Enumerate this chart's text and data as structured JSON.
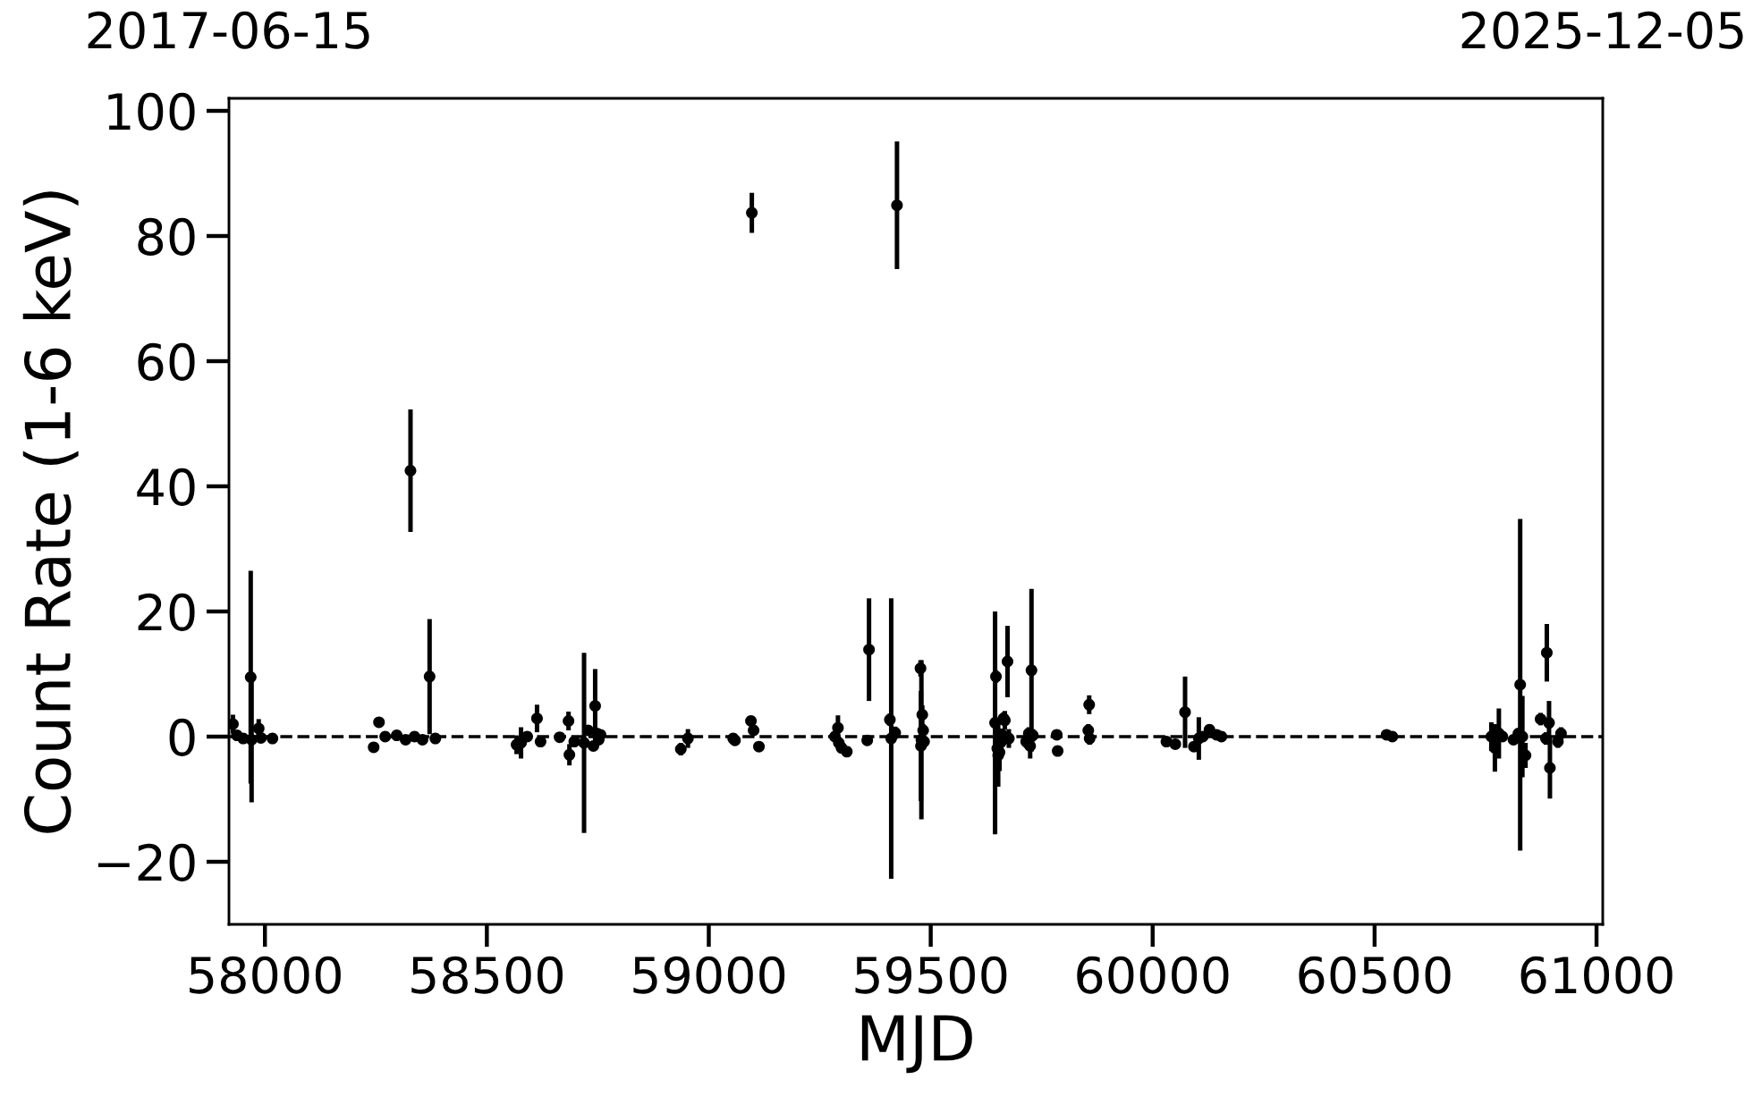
{
  "chart_data": {
    "type": "scatter",
    "xlabel": "MJD",
    "ylabel": "Count Rate (1-6 keV)",
    "color": "#000000",
    "marker": "circle",
    "xlim": [
      57919,
      61014
    ],
    "xticks": [
      58000,
      58500,
      59000,
      59500,
      60000,
      60500,
      61000
    ],
    "ylim": [
      -30,
      102
    ],
    "yticks": [
      {
        "value": -20,
        "label": "−20"
      },
      0,
      20,
      40,
      60,
      80,
      100
    ],
    "x2lim": [
      "2017-06-15",
      "2025-12-05"
    ],
    "x2ticks": [
      "2017-06-15",
      "2025-12-05"
    ],
    "ref_lines": [
      {
        "axis": "y",
        "value": 0,
        "color": "#000000",
        "line_style": "dashed"
      }
    ],
    "x": [
      57928,
      57937,
      57951,
      57968,
      57970,
      57986,
      57991,
      58017,
      58245,
      58257,
      58271,
      58297,
      58317,
      58328,
      58337,
      58355,
      58371,
      58384,
      58567,
      58577,
      58591,
      58613,
      58621,
      58664,
      58684,
      58686,
      58697,
      58719,
      58728,
      58740,
      58744,
      58748,
      58752,
      58756,
      58937,
      58953,
      59055,
      59059,
      59095,
      59097,
      59101,
      59113,
      59284,
      59291,
      59293,
      59299,
      59311,
      59357,
      59361,
      59408,
      59411,
      59420,
      59424,
      59477,
      59478,
      59479,
      59481,
      59483,
      59485,
      59645,
      59647,
      59650,
      59652,
      59655,
      59658,
      59661,
      59664,
      59667,
      59673,
      59676,
      59715,
      59721,
      59724,
      59727,
      59730,
      59784,
      59786,
      59855,
      59857,
      59858,
      60031,
      60051,
      60073,
      60093,
      60104,
      60113,
      60128,
      60144,
      60155,
      60527,
      60540,
      60763,
      60771,
      60780,
      60788,
      60813,
      60824,
      60828,
      60833,
      60840,
      60874,
      60886,
      60888,
      60893,
      60895,
      60913,
      60920
    ],
    "values": [
      2.0,
      0.2,
      -0.3,
      9.5,
      -0.5,
      1.3,
      -0.2,
      -0.3,
      -1.7,
      2.3,
      0,
      0.2,
      -0.5,
      42.5,
      0,
      -0.5,
      9.6,
      -0.3,
      -1.3,
      -1.0,
      0,
      2.9,
      -0.8,
      -0.1,
      2.5,
      -2.9,
      -0.8,
      -1.0,
      1.0,
      -1.5,
      4.9,
      0.5,
      -0.5,
      0.3,
      -2.0,
      -0.3,
      -0.3,
      -0.6,
      2.5,
      83.7,
      1.0,
      -1.6,
      0,
      1.4,
      -1.0,
      -1.8,
      -2.4,
      -0.6,
      13.9,
      2.7,
      -0.3,
      0.6,
      84.9,
      10.9,
      -1.5,
      -0.5,
      3.5,
      1.0,
      -0.8,
      2.2,
      9.6,
      -1.9,
      -3.0,
      -2.5,
      -0.9,
      0.3,
      2.9,
      2.6,
      12.0,
      -0.3,
      -0.8,
      0.5,
      -1.5,
      10.6,
      0.2,
      0.3,
      -2.3,
      1.0,
      5.1,
      -0.3,
      -0.8,
      -1.2,
      3.9,
      -1.6,
      -0.3,
      0,
      1.1,
      0.3,
      0,
      0.3,
      0,
      0,
      -1.8,
      0.5,
      0,
      -0.5,
      0.5,
      8.3,
      0,
      -3.0,
      2.8,
      -0.3,
      13.4,
      2.2,
      -5.0,
      -0.8,
      0.5
    ],
    "errors": [
      1.5,
      0.5,
      0.5,
      17,
      10,
      1.5,
      0.8,
      0.5,
      0.5,
      0.5,
      0.5,
      0.5,
      0.5,
      9.8,
      0.5,
      0.5,
      9.2,
      0.5,
      1.5,
      2.5,
      0.8,
      2.2,
      0.8,
      0.5,
      1.5,
      1.7,
      0.8,
      14.4,
      0.8,
      0.8,
      5.9,
      0.8,
      0.8,
      0.8,
      1,
      1.5,
      0.5,
      0.5,
      0.8,
      3.2,
      0.8,
      0.8,
      0.8,
      2,
      1,
      0.8,
      0.8,
      0.5,
      8.2,
      1,
      22.4,
      1,
      10.2,
      1.3,
      8.8,
      12.7,
      1.5,
      1,
      1,
      17.8,
      1,
      2,
      5,
      3,
      1.5,
      1,
      1,
      1.5,
      5.7,
      1.5,
      1,
      1,
      2,
      13,
      1,
      0.8,
      0.8,
      1,
      1.5,
      1,
      0.5,
      0.5,
      5.7,
      0.8,
      3.4,
      0.8,
      0.8,
      0.8,
      0.5,
      0.5,
      0.5,
      2.3,
      3.8,
      4,
      0.8,
      0.8,
      0.8,
      26.5,
      6.5,
      2,
      1,
      1,
      4.6,
      3.5,
      4.9,
      1,
      1
    ]
  }
}
